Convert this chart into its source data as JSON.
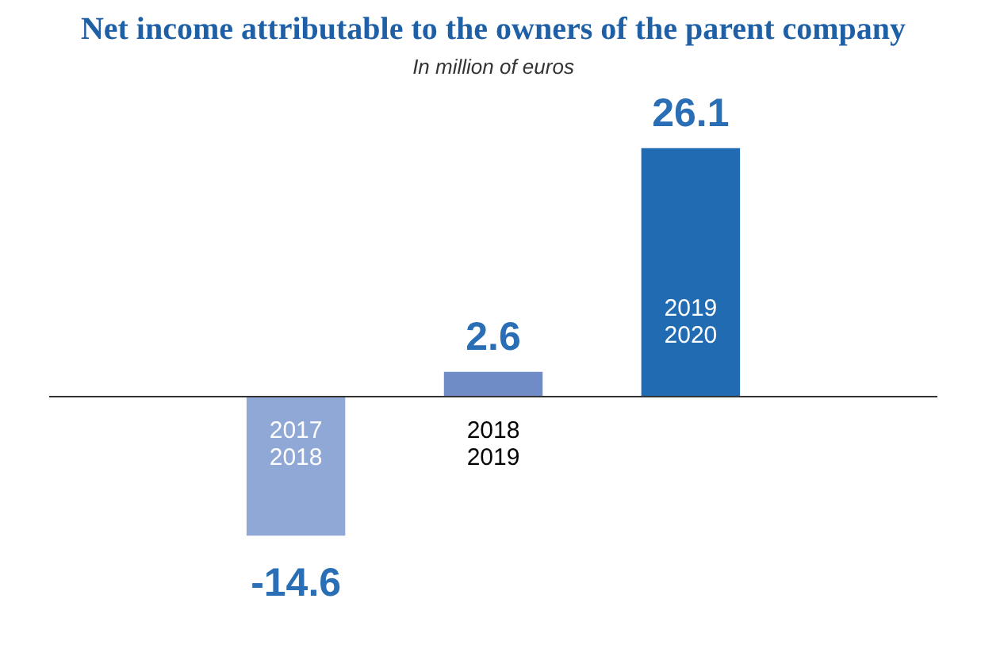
{
  "chart_data": {
    "type": "bar",
    "title": "Net income attributable to the owners of the parent company",
    "subtitle": "In million of euros",
    "categories": [
      "2017\n2018",
      "2018\n2019",
      "2019\n2020"
    ],
    "values": [
      -14.6,
      2.6,
      26.1
    ],
    "colors": [
      "#8fa8d6",
      "#6f8cc6",
      "#216bb3"
    ],
    "data_labels": true,
    "legend": false
  }
}
